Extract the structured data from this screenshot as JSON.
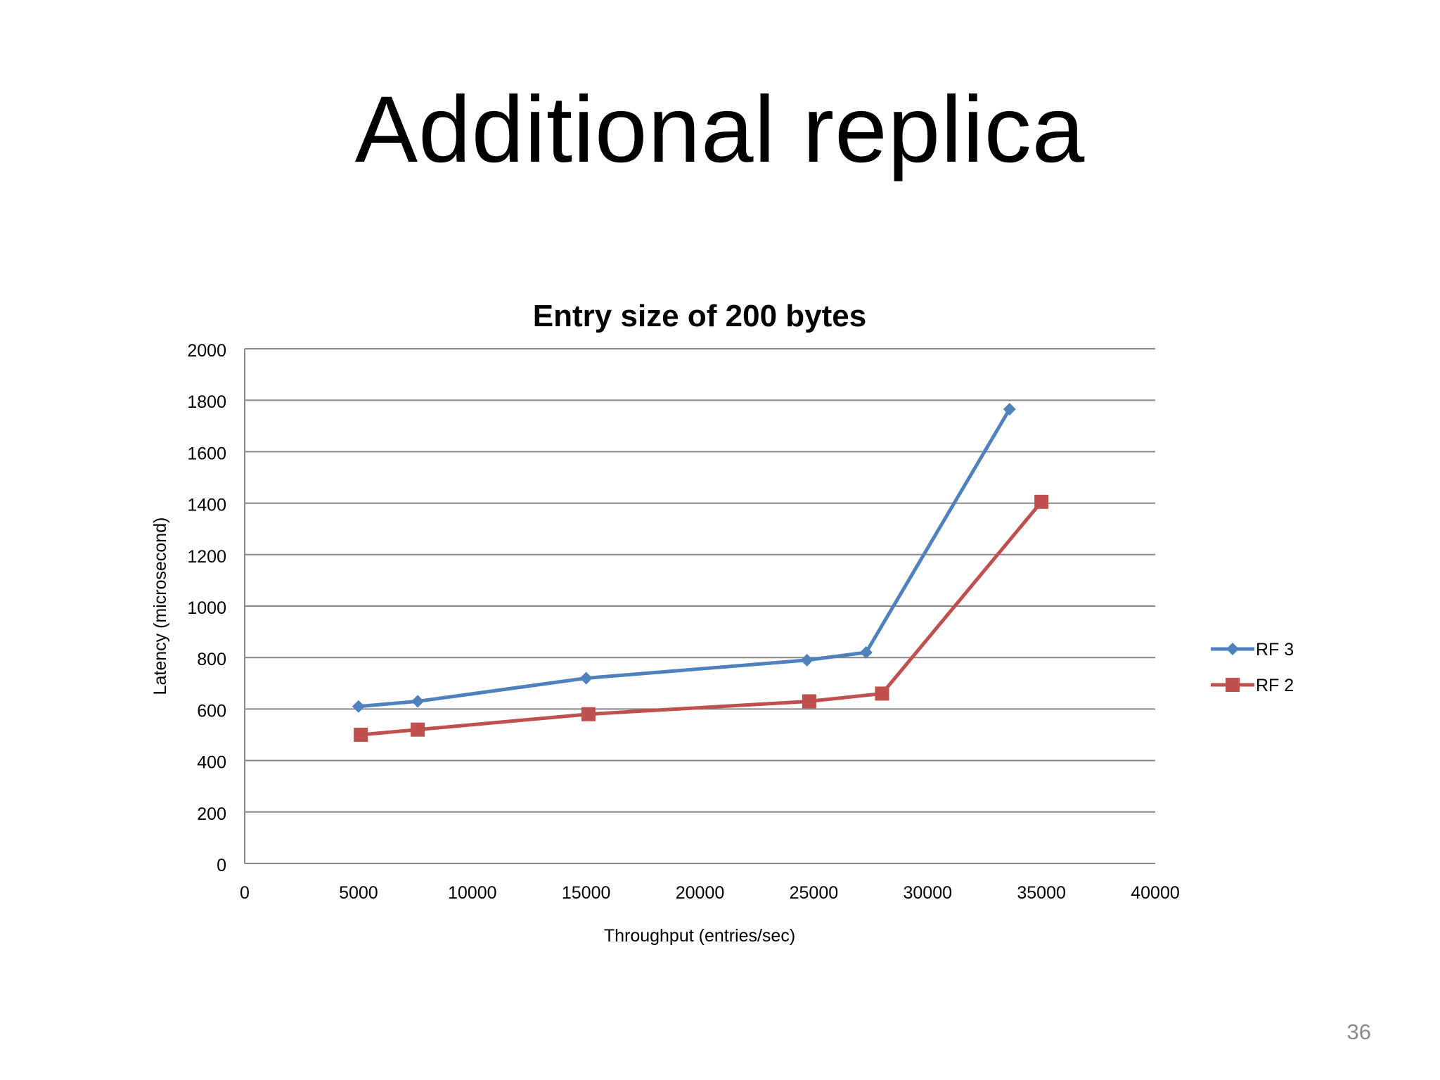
{
  "slide": {
    "title": "Additional replica",
    "page_number": "36"
  },
  "chart_data": {
    "type": "line",
    "title": "Entry size of 200 bytes",
    "xlabel": "Throughput (entries/sec)",
    "ylabel": "Latency (microsecond)",
    "xlim": [
      0,
      40000
    ],
    "ylim": [
      0,
      2000
    ],
    "xticks": [
      0,
      5000,
      10000,
      15000,
      20000,
      25000,
      30000,
      35000,
      40000
    ],
    "yticks": [
      0,
      200,
      400,
      600,
      800,
      1000,
      1200,
      1400,
      1600,
      1800,
      2000
    ],
    "grid": "horizontal",
    "legend": "right",
    "series": [
      {
        "name": "RF 3",
        "color": "#4f81bd",
        "marker": "diamond",
        "x": [
          5000,
          7600,
          15000,
          24700,
          27300,
          33600
        ],
        "y": [
          610,
          630,
          720,
          790,
          820,
          1765
        ]
      },
      {
        "name": "RF 2",
        "color": "#c0504d",
        "marker": "square",
        "x": [
          5100,
          7600,
          15100,
          24800,
          28000,
          35000
        ],
        "y": [
          500,
          520,
          580,
          630,
          660,
          1405
        ]
      }
    ]
  }
}
